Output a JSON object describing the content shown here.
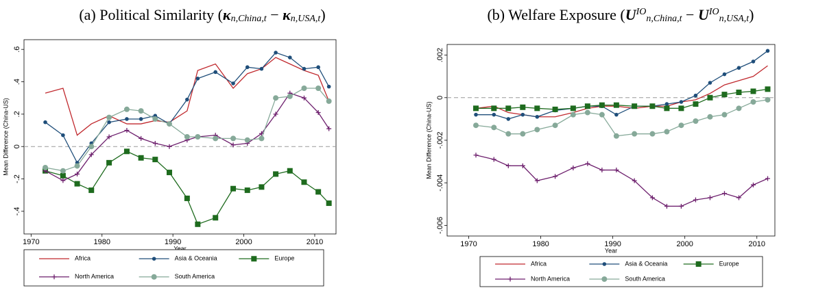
{
  "chart_data": [
    {
      "type": "line",
      "title_parts": [
        {
          "text": "(a) Political Similarity (",
          "style": "plain"
        },
        {
          "text": "κ",
          "style": "math"
        },
        {
          "text": "n,China,t",
          "style": "sub"
        },
        {
          "text": " − ",
          "style": "plain"
        },
        {
          "text": "κ",
          "style": "math"
        },
        {
          "text": "n,USA,t",
          "style": "sub"
        },
        {
          "text": ")",
          "style": "plain"
        }
      ],
      "x_label": "Year",
      "y_label": "Mean Difference (China-US)",
      "x": [
        1972,
        1974.5,
        1976.5,
        1978.5,
        1981,
        1983.5,
        1985.5,
        1987.5,
        1989.5,
        1992,
        1993.5,
        1996,
        1998.5,
        2000.5,
        2002.5,
        2004.5,
        2006.5,
        2008.5,
        2010.5,
        2012
      ],
      "xlim": [
        1969,
        2013
      ],
      "xticks": [
        1970,
        1980,
        1990,
        2000,
        2010
      ],
      "ylim": [
        -0.54,
        0.66
      ],
      "yticks": [
        {
          "value": -0.4,
          "label": "-.4"
        },
        {
          "value": -0.2,
          "label": "-.2"
        },
        0,
        {
          "value": 0.2,
          "label": ".2"
        },
        {
          "value": 0.4,
          "label": ".4"
        },
        {
          "value": 0.6,
          "label": ".6"
        }
      ],
      "reference_line": 0,
      "legend_columns": 3,
      "series": [
        {
          "name": "Africa",
          "color": "#c0282d",
          "marker": "none",
          "values": [
            0.33,
            0.36,
            0.07,
            0.14,
            0.19,
            0.14,
            0.14,
            0.16,
            0.15,
            0.22,
            0.47,
            0.51,
            0.36,
            0.45,
            0.48,
            0.55,
            0.51,
            0.47,
            0.44,
            0.28
          ]
        },
        {
          "name": "Asia & Oceania",
          "color": "#1f4e7a",
          "marker": "circle",
          "values": [
            0.15,
            0.07,
            -0.1,
            0.02,
            0.15,
            0.17,
            0.17,
            0.19,
            0.14,
            0.29,
            0.42,
            0.46,
            0.39,
            0.49,
            0.48,
            0.58,
            0.55,
            0.48,
            0.49,
            0.37
          ]
        },
        {
          "name": "Europe",
          "color": "#1e6b1e",
          "marker": "square",
          "values": [
            -0.15,
            -0.18,
            -0.23,
            -0.27,
            -0.1,
            -0.03,
            -0.07,
            -0.08,
            -0.16,
            -0.32,
            -0.48,
            -0.44,
            -0.26,
            -0.27,
            -0.25,
            -0.17,
            -0.15,
            -0.22,
            -0.28,
            -0.35
          ]
        },
        {
          "name": "North America",
          "color": "#6d1f6d",
          "marker": "plus",
          "values": [
            -0.15,
            -0.21,
            -0.17,
            -0.05,
            0.06,
            0.1,
            0.05,
            0.02,
            0.0,
            0.04,
            0.06,
            0.07,
            0.01,
            0.02,
            0.08,
            0.2,
            0.33,
            0.3,
            0.21,
            0.11
          ]
        },
        {
          "name": "South America",
          "color": "#86a999",
          "marker": "big-circle",
          "values": [
            -0.13,
            -0.15,
            -0.12,
            0.0,
            0.18,
            0.23,
            0.22,
            0.17,
            0.14,
            0.06,
            0.06,
            0.05,
            0.05,
            0.04,
            0.05,
            0.3,
            0.31,
            0.36,
            0.36,
            0.28
          ]
        }
      ]
    },
    {
      "type": "line",
      "title_parts": [
        {
          "text": "(b) Welfare Exposure (",
          "style": "plain"
        },
        {
          "text": "U",
          "style": "math"
        },
        {
          "text": "IO",
          "style": "sup"
        },
        {
          "text": "n,China,t",
          "style": "sub"
        },
        {
          "text": " − ",
          "style": "plain"
        },
        {
          "text": "U",
          "style": "math"
        },
        {
          "text": "IO",
          "style": "sup"
        },
        {
          "text": "n,USA,t",
          "style": "sub"
        },
        {
          "text": ")",
          "style": "plain"
        }
      ],
      "x_label": "Year",
      "y_label": "Mean Difference (China-US)",
      "x": [
        1971,
        1973.5,
        1975.5,
        1977.5,
        1979.5,
        1982,
        1984.5,
        1986.5,
        1988.5,
        1990.5,
        1993,
        1995.5,
        1997.5,
        1999.5,
        2001.5,
        2003.5,
        2005.5,
        2007.5,
        2009.5,
        2011.5
      ],
      "xlim": [
        1967,
        2012.5
      ],
      "xticks": [
        1970,
        1980,
        1990,
        2000,
        2010
      ],
      "ylim": [
        -0.0065,
        0.0025
      ],
      "yticks": [
        {
          "value": -0.006,
          "label": "-.006"
        },
        {
          "value": -0.004,
          "label": "-.004"
        },
        {
          "value": -0.002,
          "label": "-.002"
        },
        0,
        {
          "value": 0.002,
          "label": ".002"
        }
      ],
      "reference_line": 0,
      "legend_columns": 3,
      "series": [
        {
          "name": "Africa",
          "color": "#c0282d",
          "marker": "none",
          "values": [
            -0.0005,
            -0.0004,
            -0.0007,
            -0.0008,
            -0.0009,
            -0.0009,
            -0.0007,
            -0.0005,
            -0.0004,
            -0.0004,
            -0.0005,
            -0.0004,
            -0.0004,
            -0.0002,
            -0.0001,
            0.0002,
            0.0006,
            0.0008,
            0.001,
            0.0015
          ]
        },
        {
          "name": "Asia & Oceania",
          "color": "#1f4e7a",
          "marker": "circle",
          "values": [
            -0.0008,
            -0.0008,
            -0.001,
            -0.0008,
            -0.0009,
            -0.0006,
            -0.0005,
            -0.0004,
            -0.0004,
            -0.0008,
            -0.0004,
            -0.0004,
            -0.0003,
            -0.0002,
            0.0001,
            0.0007,
            0.0011,
            0.0014,
            0.0017,
            0.0022
          ]
        },
        {
          "name": "Europe",
          "color": "#1e6b1e",
          "marker": "square",
          "values": [
            -0.0005,
            -0.0005,
            -0.0005,
            -0.00045,
            -0.0005,
            -0.00055,
            -0.0005,
            -0.0004,
            -0.00035,
            -0.00035,
            -0.0004,
            -0.0004,
            -0.0005,
            -0.0005,
            -0.0003,
            0.0,
            0.00015,
            0.00025,
            0.0003,
            0.0004
          ]
        },
        {
          "name": "North America",
          "color": "#6d1f6d",
          "marker": "plus",
          "values": [
            -0.0027,
            -0.0029,
            -0.0032,
            -0.0032,
            -0.0039,
            -0.0037,
            -0.0033,
            -0.0031,
            -0.0034,
            -0.0034,
            -0.0039,
            -0.0047,
            -0.0051,
            -0.0051,
            -0.0048,
            -0.0047,
            -0.0045,
            -0.0047,
            -0.0041,
            -0.0038
          ]
        },
        {
          "name": "South America",
          "color": "#86a999",
          "marker": "big-circle",
          "values": [
            -0.0013,
            -0.0014,
            -0.0017,
            -0.0017,
            -0.0015,
            -0.0013,
            -0.0008,
            -0.0007,
            -0.0008,
            -0.0018,
            -0.0017,
            -0.0017,
            -0.0016,
            -0.0013,
            -0.0011,
            -0.0009,
            -0.0008,
            -0.0005,
            -0.0002,
            -0.0001
          ]
        }
      ]
    }
  ]
}
